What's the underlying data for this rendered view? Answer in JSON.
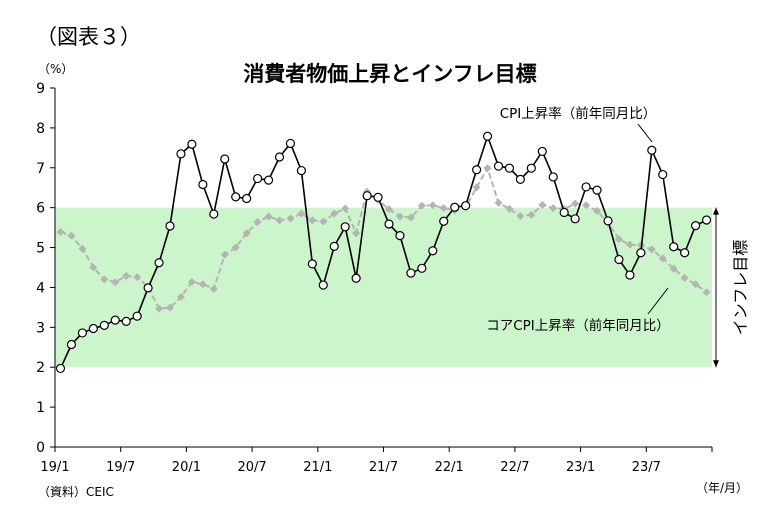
{
  "figure_label": "（図表３）",
  "source": "（資料）CEIC",
  "chart_data": {
    "type": "line",
    "title": "消費者物価上昇とインフレ目標",
    "yunit": "（%）",
    "xunit": "（年/月）",
    "ylim": [
      0,
      9
    ],
    "yticks": [
      0,
      1,
      2,
      3,
      4,
      5,
      6,
      7,
      8,
      9
    ],
    "xticks": [
      {
        "label": "19/1",
        "index": 0
      },
      {
        "label": "19/7",
        "index": 6
      },
      {
        "label": "20/1",
        "index": 12
      },
      {
        "label": "20/7",
        "index": 18
      },
      {
        "label": "21/1",
        "index": 24
      },
      {
        "label": "21/7",
        "index": 30
      },
      {
        "label": "22/1",
        "index": 36
      },
      {
        "label": "22/7",
        "index": 42
      },
      {
        "label": "23/1",
        "index": 48
      },
      {
        "label": "23/7",
        "index": 54
      }
    ],
    "target_band": {
      "low": 2,
      "high": 6,
      "label": "インフレ目標",
      "color": "#ccf5cc"
    },
    "series": [
      {
        "name": "CPI上昇率（前年同月比）",
        "color": "#000000",
        "style": "solid-open-circle",
        "values": [
          1.97,
          2.57,
          2.86,
          2.97,
          3.05,
          3.18,
          3.15,
          3.28,
          3.99,
          4.62,
          5.54,
          7.35,
          7.59,
          6.58,
          5.84,
          7.22,
          6.27,
          6.23,
          6.73,
          6.69,
          7.27,
          7.61,
          6.93,
          4.59,
          4.06,
          5.03,
          5.52,
          4.23,
          6.3,
          6.26,
          5.59,
          5.3,
          4.36,
          4.48,
          4.92,
          5.66,
          6.01,
          6.05,
          6.95,
          7.79,
          7.04,
          6.99,
          6.71,
          6.99,
          7.41,
          6.77,
          5.88,
          5.72,
          6.52,
          6.44,
          5.67,
          4.7,
          4.31,
          4.87,
          7.44,
          6.83,
          5.02,
          4.87,
          5.55,
          5.69
        ]
      },
      {
        "name": "コアCPI上昇率（前年同月比）",
        "color": "#b4b4b4",
        "style": "dashed-diamond",
        "values": [
          5.39,
          5.3,
          4.97,
          4.5,
          4.2,
          4.13,
          4.29,
          4.26,
          4.01,
          3.47,
          3.49,
          3.76,
          4.14,
          4.08,
          3.96,
          4.82,
          5.0,
          5.36,
          5.64,
          5.78,
          5.68,
          5.73,
          5.85,
          5.68,
          5.65,
          5.85,
          5.98,
          5.36,
          6.4,
          6.19,
          5.96,
          5.78,
          5.75,
          6.05,
          6.06,
          5.99,
          5.93,
          6.01,
          6.51,
          6.99,
          6.12,
          5.97,
          5.79,
          5.82,
          6.07,
          5.99,
          5.97,
          6.1,
          6.06,
          5.92,
          5.62,
          5.21,
          5.07,
          5.06,
          4.95,
          4.73,
          4.47,
          4.24,
          4.08,
          3.88
        ]
      }
    ]
  }
}
